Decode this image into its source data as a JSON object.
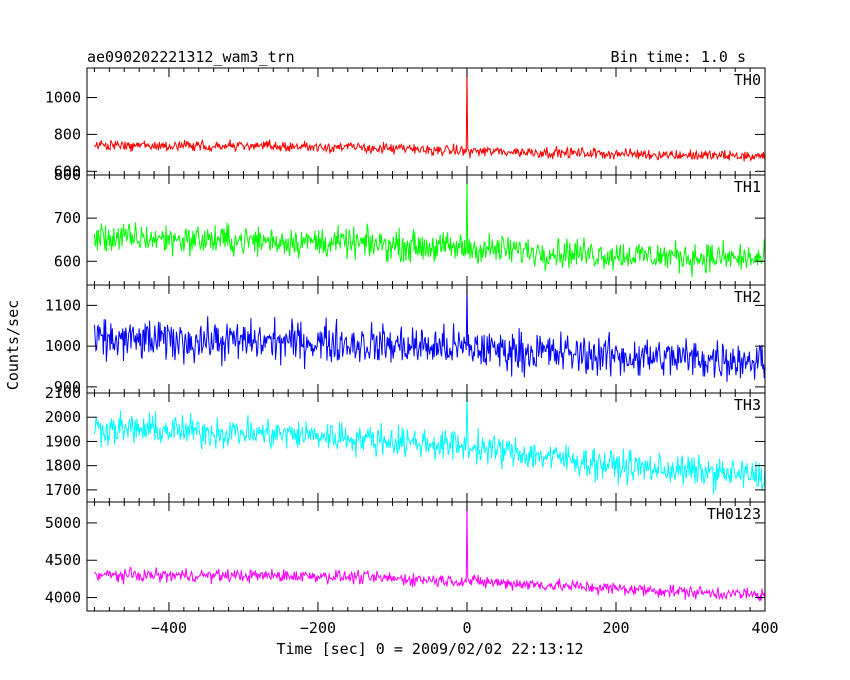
{
  "title_left": "ae090202221312_wam3_trn",
  "title_right": "Bin time: 1.0 s",
  "xlabel": "Time [sec] 0 = 2009/02/02 22:13:12",
  "ylabel": "Counts/sec",
  "chart_data": {
    "type": "line",
    "x_range": [
      -510,
      400
    ],
    "x_ticks": [
      -400,
      -200,
      0,
      200,
      400
    ],
    "x_tick_labels": [
      "−400",
      "−200",
      "0",
      "200",
      "400"
    ],
    "grid": false,
    "panels": [
      {
        "name": "TH0",
        "color": "#ff0000",
        "ylim": [
          580,
          1160
        ],
        "yticks": [
          1000,
          800,
          600
        ],
        "ytick_labels": [
          "1000",
          "800",
          "600"
        ],
        "baseline": [
          [
            -500,
            740
          ],
          [
            -200,
            735
          ],
          [
            0,
            710
          ],
          [
            200,
            695
          ],
          [
            400,
            680
          ]
        ],
        "noise_amplitude": 32,
        "spike_time": 0,
        "spike_value": 1160
      },
      {
        "name": "TH1",
        "color": "#00ff00",
        "ylim": [
          545,
          800
        ],
        "yticks": [
          800,
          700,
          600
        ],
        "ytick_labels": [
          "800",
          "700",
          "600"
        ],
        "baseline": [
          [
            -500,
            655
          ],
          [
            -200,
            645
          ],
          [
            0,
            630
          ],
          [
            200,
            615
          ],
          [
            400,
            605
          ]
        ],
        "noise_amplitude": 38,
        "spike_time": 0,
        "spike_value": 800
      },
      {
        "name": "TH2",
        "color": "#0000ff",
        "ylim": [
          885,
          1150
        ],
        "yticks": [
          1100,
          1000,
          900
        ],
        "ytick_labels": [
          "1100",
          "1000",
          "900"
        ],
        "baseline": [
          [
            -500,
            1015
          ],
          [
            -200,
            1010
          ],
          [
            0,
            995
          ],
          [
            200,
            975
          ],
          [
            400,
            965
          ]
        ],
        "noise_amplitude": 55,
        "spike_time": 0,
        "spike_value": 1150
      },
      {
        "name": "TH3",
        "color": "#00ffff",
        "ylim": [
          1650,
          2100
        ],
        "yticks": [
          2100,
          2000,
          1900,
          1800,
          1700
        ],
        "ytick_labels": [
          "2100",
          "2000",
          "1900",
          "1800",
          "1700"
        ],
        "baseline": [
          [
            -500,
            1955
          ],
          [
            -200,
            1925
          ],
          [
            0,
            1880
          ],
          [
            200,
            1800
          ],
          [
            400,
            1755
          ]
        ],
        "noise_amplitude": 70,
        "spike_time": 0,
        "spike_value": 2100
      },
      {
        "name": "TH0123",
        "color": "#ff00ff",
        "ylim": [
          3820,
          5280
        ],
        "yticks": [
          5000,
          4500,
          4000
        ],
        "ytick_labels": [
          "5000",
          "4500",
          "4000"
        ],
        "baseline": [
          [
            -500,
            4300
          ],
          [
            -200,
            4290
          ],
          [
            0,
            4220
          ],
          [
            200,
            4120
          ],
          [
            400,
            4030
          ]
        ],
        "noise_amplitude": 95,
        "spike_time": 0,
        "spike_value": 5280
      }
    ]
  }
}
